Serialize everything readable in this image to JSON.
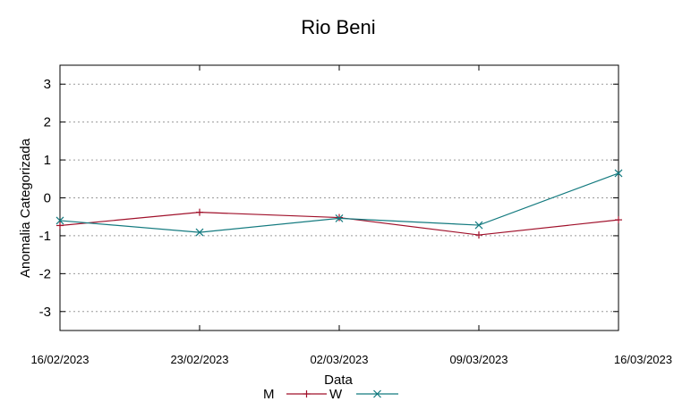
{
  "chart_data": {
    "type": "line",
    "title": "Rio Beni",
    "xlabel": "Data",
    "ylabel": "Anomalia Categorizada",
    "categories": [
      "16/02/2023",
      "23/02/2023",
      "02/03/2023",
      "09/03/2023",
      "16/03/2023"
    ],
    "ylim": [
      -3.5,
      3.5
    ],
    "yticks": [
      3,
      2,
      1,
      0,
      -1,
      -2,
      -3
    ],
    "ytick_labels": [
      "3",
      "2",
      "1",
      "0",
      "-1",
      "-2",
      "-3"
    ],
    "grid": true,
    "legend_position": "bottom-center",
    "series": [
      {
        "name": "M",
        "color": "#a0102a",
        "marker": "plus",
        "values": [
          -0.73,
          -0.38,
          -0.52,
          -0.98,
          -0.58
        ]
      },
      {
        "name": "W",
        "color": "#137a7f",
        "marker": "x",
        "values": [
          -0.6,
          -0.91,
          -0.54,
          -0.72,
          0.65
        ]
      }
    ]
  }
}
